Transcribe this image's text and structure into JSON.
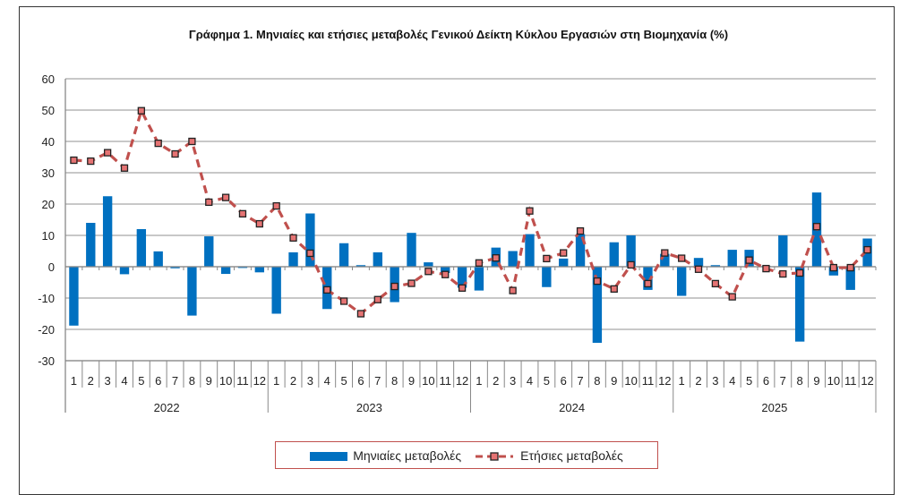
{
  "chart_data": {
    "type": "bar+line",
    "title": "Γράφημα 1.  Μηνιαίες και ετήσιες μεταβολές  Γενικού Δείκτη Κύκλου Εργασιών στη Βιομηχανία  (%)",
    "ylim": [
      -30,
      60
    ],
    "yticks": [
      60,
      50,
      40,
      30,
      20,
      10,
      0,
      -10,
      -20,
      -30
    ],
    "years": [
      "2022",
      "2023",
      "2024",
      "2025"
    ],
    "months": [
      "1",
      "2",
      "3",
      "4",
      "5",
      "6",
      "7",
      "8",
      "9",
      "10",
      "11",
      "12"
    ],
    "grid": true,
    "legend_position": "bottom",
    "series": [
      {
        "name": "Μηνιαίες μεταβολές",
        "type": "bar",
        "color": "#0070c0",
        "values": [
          -18.8,
          14,
          22.5,
          -2.4,
          12,
          4.9,
          -0.5,
          -15.6,
          9.7,
          -2.3,
          -0.4,
          -1.8,
          -15,
          4.6,
          17,
          -13.5,
          7.5,
          0.5,
          4.6,
          -11.3,
          10.8,
          1.4,
          -2,
          -6.7,
          -7.6,
          6.1,
          5,
          10.4,
          -6.5,
          2.6,
          10.4,
          -24.3,
          7.8,
          10,
          -7.4,
          4.1,
          -9.3,
          2.8,
          0.5,
          5.4,
          5.4,
          0.2,
          10,
          -23.9,
          23.7,
          -2.8,
          -7.4,
          9
        ]
      },
      {
        "name": "Ετήσιες μεταβολές",
        "type": "line",
        "color": "#c0504d",
        "values": [
          34,
          33.7,
          36.4,
          31.5,
          49.8,
          39.4,
          36,
          40,
          20.6,
          22.1,
          16.9,
          13.7,
          19.4,
          9.2,
          4.3,
          -7.4,
          -11,
          -15,
          -10.5,
          -6.3,
          -5.3,
          -1.5,
          -2.5,
          -6.8,
          1.2,
          2.8,
          -7.6,
          17.8,
          2.6,
          4.4,
          11.4,
          -4.6,
          -7.1,
          0.6,
          -5.4,
          4.4,
          2.7,
          -0.8,
          -5.4,
          -9.6,
          2.1,
          -0.6,
          -2.3,
          -2,
          12.8,
          -0.3,
          -0.3,
          5.4
        ]
      }
    ]
  }
}
